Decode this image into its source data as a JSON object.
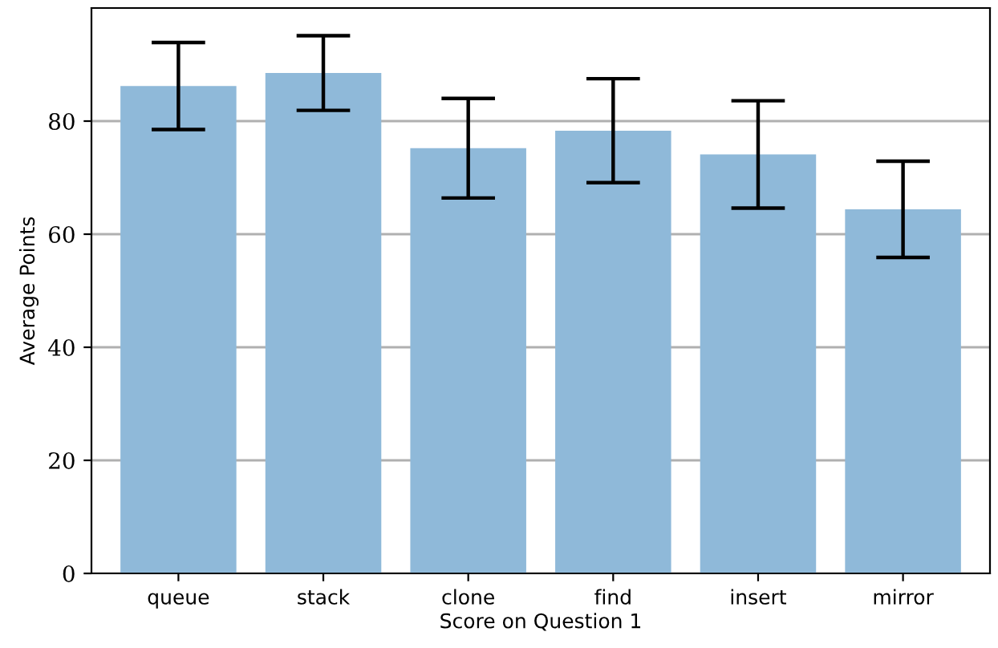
{
  "chart_data": {
    "type": "bar",
    "xlabel": "Score on Question 1",
    "ylabel": "Average Points",
    "categories": [
      "queue",
      "stack",
      "clone",
      "find",
      "insert",
      "mirror"
    ],
    "values": [
      86.2,
      88.5,
      75.2,
      78.3,
      74.1,
      64.4
    ],
    "errors": [
      7.7,
      6.6,
      8.8,
      9.2,
      9.5,
      8.5
    ],
    "color": "#8fb9d9",
    "ylim": [
      0,
      100
    ],
    "yticks": [
      0,
      20,
      40,
      60,
      80
    ],
    "grid": "y"
  }
}
